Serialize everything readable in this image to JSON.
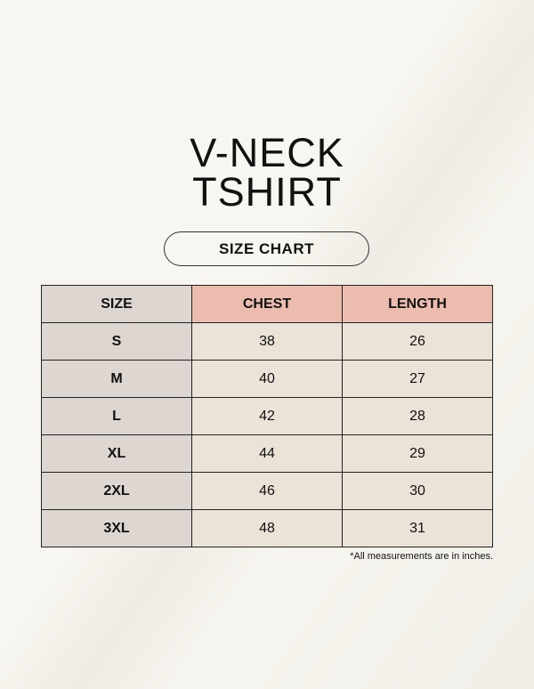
{
  "title_line1": "V-NECK",
  "title_line2": "TSHIRT",
  "subtitle": "SIZE CHART",
  "table": {
    "headers": [
      "SIZE",
      "CHEST",
      "LENGTH"
    ],
    "rows": [
      [
        "S",
        "38",
        "26"
      ],
      [
        "M",
        "40",
        "27"
      ],
      [
        "L",
        "42",
        "28"
      ],
      [
        "XL",
        "44",
        "29"
      ],
      [
        "2XL",
        "46",
        "30"
      ],
      [
        "3XL",
        "48",
        "31"
      ]
    ]
  },
  "note": "*All measurements are in inches.",
  "colors": {
    "size_column": "#ddd6d1",
    "header_accent": "#ecbcae",
    "cell": "#ebe2d8"
  }
}
